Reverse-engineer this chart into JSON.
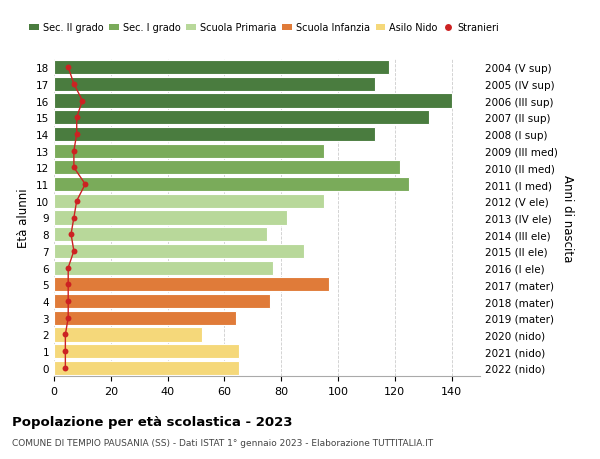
{
  "ages": [
    18,
    17,
    16,
    15,
    14,
    13,
    12,
    11,
    10,
    9,
    8,
    7,
    6,
    5,
    4,
    3,
    2,
    1,
    0
  ],
  "right_labels": [
    "2004 (V sup)",
    "2005 (IV sup)",
    "2006 (III sup)",
    "2007 (II sup)",
    "2008 (I sup)",
    "2009 (III med)",
    "2010 (II med)",
    "2011 (I med)",
    "2012 (V ele)",
    "2013 (IV ele)",
    "2014 (III ele)",
    "2015 (II ele)",
    "2016 (I ele)",
    "2017 (mater)",
    "2018 (mater)",
    "2019 (mater)",
    "2020 (nido)",
    "2021 (nido)",
    "2022 (nido)"
  ],
  "bar_values": [
    118,
    113,
    140,
    132,
    113,
    95,
    122,
    125,
    95,
    82,
    75,
    88,
    77,
    97,
    76,
    64,
    52,
    65,
    65
  ],
  "stranieri": [
    5,
    7,
    10,
    8,
    8,
    7,
    7,
    11,
    8,
    7,
    6,
    7,
    5,
    5,
    5,
    5,
    4,
    4,
    4
  ],
  "bar_colors": [
    "#4a7c3f",
    "#4a7c3f",
    "#4a7c3f",
    "#4a7c3f",
    "#4a7c3f",
    "#7aab5a",
    "#7aab5a",
    "#7aab5a",
    "#b8d89a",
    "#b8d89a",
    "#b8d89a",
    "#b8d89a",
    "#b8d89a",
    "#e07b39",
    "#e07b39",
    "#e07b39",
    "#f5d87a",
    "#f5d87a",
    "#f5d87a"
  ],
  "legend_labels": [
    "Sec. II grado",
    "Sec. I grado",
    "Scuola Primaria",
    "Scuola Infanzia",
    "Asilo Nido",
    "Stranieri"
  ],
  "legend_colors": [
    "#4a7c3f",
    "#7aab5a",
    "#b8d89a",
    "#e07b39",
    "#f5d87a",
    "#cc2222"
  ],
  "stranieri_color": "#cc2222",
  "ylabel_left": "Età alunni",
  "ylabel_right": "Anni di nascita",
  "title": "Popolazione per età scolastica - 2023",
  "subtitle": "COMUNE DI TEMPIO PAUSANIA (SS) - Dati ISTAT 1° gennaio 2023 - Elaborazione TUTTITALIA.IT",
  "xlim": [
    0,
    150
  ],
  "xticks": [
    0,
    20,
    40,
    60,
    80,
    100,
    120,
    140
  ],
  "background_color": "#ffffff",
  "grid_color": "#cccccc"
}
